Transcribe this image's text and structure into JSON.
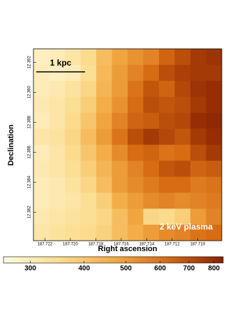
{
  "chart_data": {
    "type": "heatmap",
    "xlabel": "Right ascension",
    "ylabel": "Declination",
    "xlim": [
      187.7229,
      187.7081
    ],
    "xticks": [
      {
        "value": 187.722,
        "label": "187.722"
      },
      {
        "value": 187.72,
        "label": "187.720"
      },
      {
        "value": 187.718,
        "label": "187.718"
      },
      {
        "value": 187.716,
        "label": "187.716"
      },
      {
        "value": 187.714,
        "label": "187.714"
      },
      {
        "value": 187.712,
        "label": "187.712"
      },
      {
        "value": 187.71,
        "label": "187.710"
      }
    ],
    "ylim": [
      12.3801,
      12.3929
    ],
    "yticks": [
      12.382,
      12.384,
      12.386,
      12.388,
      {
        "value": 12.39,
        "label": "12.390"
      },
      12.392
    ],
    "annotations": [
      "1 kpc",
      "2 keV plasma"
    ],
    "colormap": [
      "#fffbe0",
      "#fbdc8e",
      "#f3ab45",
      "#d66a12",
      "#8a2200"
    ],
    "clim": [
      260,
      840
    ],
    "clog": true,
    "cticks": [
      300,
      400,
      500,
      600,
      700,
      800
    ],
    "z": [
      [
        290,
        300,
        320,
        350,
        420,
        480,
        520,
        560,
        640,
        700,
        760,
        780
      ],
      [
        300,
        290,
        300,
        340,
        430,
        500,
        560,
        620,
        700,
        740,
        760,
        760
      ],
      [
        300,
        310,
        330,
        360,
        440,
        500,
        600,
        680,
        640,
        720,
        780,
        800
      ],
      [
        310,
        320,
        340,
        380,
        460,
        520,
        620,
        700,
        680,
        700,
        760,
        800
      ],
      [
        300,
        320,
        350,
        400,
        480,
        560,
        640,
        660,
        700,
        720,
        800,
        820
      ],
      [
        320,
        330,
        360,
        420,
        500,
        600,
        700,
        760,
        720,
        680,
        760,
        800
      ],
      [
        300,
        320,
        350,
        400,
        460,
        540,
        620,
        640,
        600,
        620,
        700,
        760
      ],
      [
        310,
        320,
        340,
        380,
        440,
        500,
        560,
        620,
        680,
        700,
        640,
        660
      ],
      [
        300,
        310,
        330,
        360,
        420,
        500,
        540,
        580,
        620,
        620,
        580,
        600
      ],
      [
        300,
        310,
        320,
        340,
        380,
        460,
        500,
        540,
        560,
        540,
        560,
        580
      ],
      [
        310,
        320,
        330,
        340,
        360,
        420,
        480,
        360,
        350,
        380,
        500,
        560
      ],
      [
        320,
        330,
        340,
        350,
        370,
        420,
        460,
        500,
        540,
        560,
        600,
        620
      ]
    ]
  }
}
